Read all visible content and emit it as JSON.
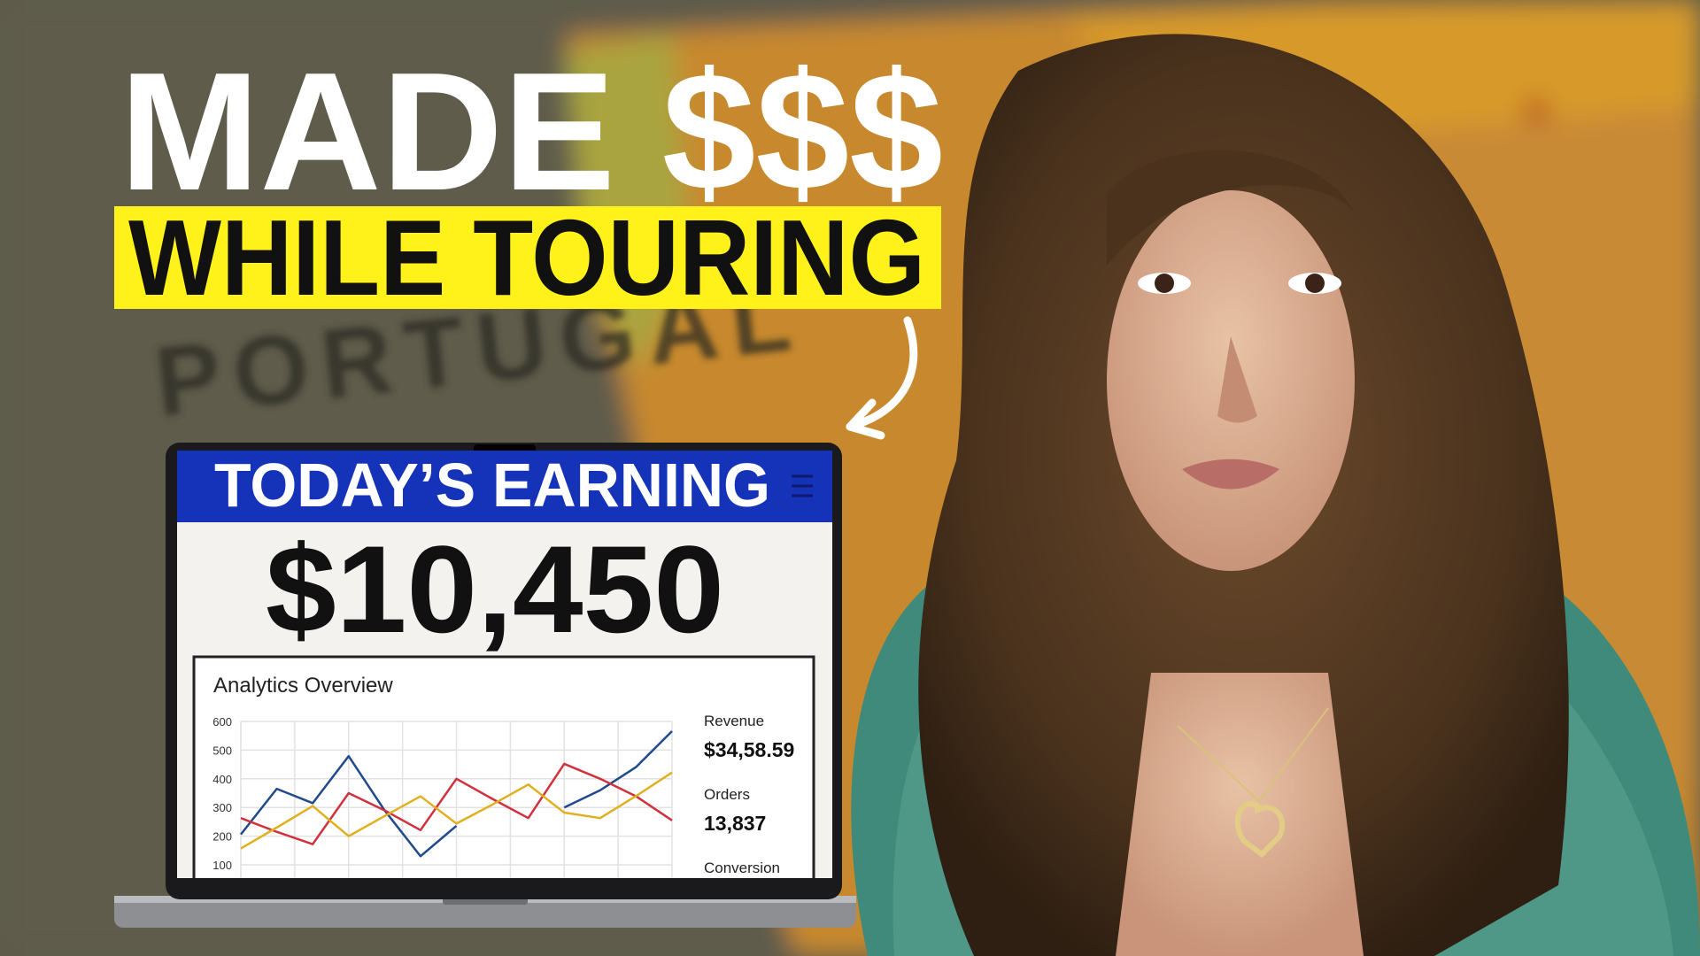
{
  "headline": {
    "line1": "MADE $$$",
    "line2": "WHILE TOURING"
  },
  "background": {
    "map_label": "PORTUGAL"
  },
  "screen": {
    "title": "TODAY’S EARNING",
    "amount": "$10,450",
    "stats": [
      {
        "label": "Revenue",
        "value": "$34,58.59"
      },
      {
        "label": "Orders",
        "value": "13,837"
      },
      {
        "label": "Conversion"
      }
    ]
  },
  "chart_data": {
    "type": "line",
    "title": "Analytics Overview",
    "ylim": [
      100,
      600
    ],
    "yticks": [
      600,
      500,
      400,
      300,
      200,
      100
    ],
    "grid": true,
    "series": [
      {
        "color": "#1f4a8c",
        "values": [
          206,
          365,
          315,
          479,
          290,
          130,
          236,
          null,
          null,
          300,
          360,
          441,
          566
        ]
      },
      {
        "color": "#d0313d",
        "values": [
          263,
          215,
          172,
          350,
          290,
          221,
          400,
          330,
          263,
          452,
          400,
          339,
          255
        ]
      },
      {
        "color": "#e0b020",
        "values": [
          157,
          230,
          305,
          200,
          270,
          339,
          244,
          310,
          380,
          282,
          263,
          340,
          422
        ]
      }
    ]
  }
}
